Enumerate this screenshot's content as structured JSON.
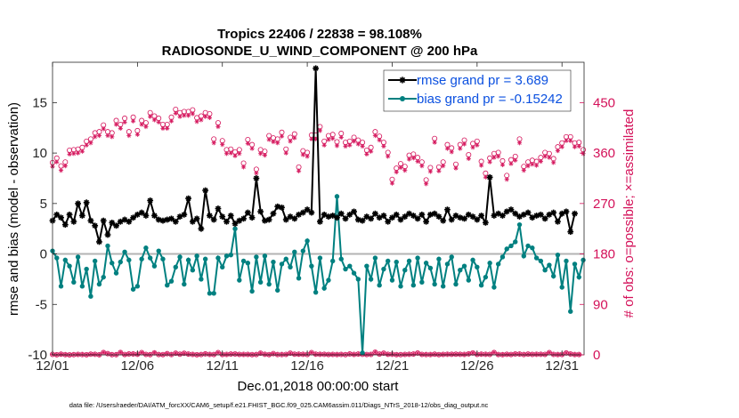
{
  "title_line1": "Tropics 22406 / 22838 = 98.108%",
  "title_line2": "RADIOSONDE_U_WIND_COMPONENT @ 200 hPa",
  "xlabel": "Dec.01,2018 00:00:00 start",
  "ylabel_left": "rmse and bias (model - observation)",
  "ylabel_right": "# of obs: o=possible; ×=assimilated",
  "footer": "data file: /Users/raeder/DAI/ATM_forcXX/CAM6_setup/f.e21.FHIST_BGC.f09_025.CAM6assim.011/Diags_NTrS_2018-12/obs_diag_output.nc",
  "legend": [
    {
      "label": "rmse grand pr = 3.689",
      "color": "#000000"
    },
    {
      "label": "bias grand pr = -0.15242",
      "color": "#008080"
    }
  ],
  "colors": {
    "rmse": "#000000",
    "bias": "#008080",
    "counts": "#d41159",
    "zero_line": "#b3b3b3"
  },
  "chart_data": {
    "type": "line",
    "title": "Tropics 22406 / 22838 = 98.108%  RADIOSONDE_U_WIND_COMPONENT @ 200 hPa",
    "x_unit": "days since Dec.01,2018 00:00:00",
    "xlim": [
      0,
      31.3
    ],
    "xticks": [
      0,
      5,
      10,
      15,
      20,
      25,
      30
    ],
    "xtick_labels": [
      "12/01",
      "12/06",
      "12/11",
      "12/16",
      "12/21",
      "12/26",
      "12/31"
    ],
    "ylim_left": [
      -10,
      19
    ],
    "yticks_left": [
      -10,
      -5,
      0,
      5,
      10,
      15
    ],
    "ytick_labels_left": [
      "-10",
      "-5",
      "0",
      "5",
      "10",
      "15"
    ],
    "ylim_right": [
      0,
      522
    ],
    "yticks_right": [
      0,
      90,
      180,
      270,
      360,
      450
    ],
    "ytick_labels_right": [
      "0",
      "90",
      "180",
      "270",
      "360",
      "450"
    ],
    "series": [
      {
        "name": "rmse",
        "legend": "rmse grand pr = 3.689",
        "axis": "left",
        "values": [
          3.3,
          3.9,
          3.6,
          2.9,
          3.9,
          3.2,
          5.0,
          3.8,
          5.1,
          3.3,
          2.8,
          1.2,
          3.3,
          1.9,
          3.1,
          2.8,
          3.2,
          3.4,
          3.2,
          3.6,
          3.9,
          4.1,
          3.8,
          5.3,
          3.8,
          3.4,
          3.3,
          3.4,
          3.5,
          3.2,
          3.7,
          3.9,
          5.5,
          3.2,
          3.5,
          2.5,
          6.3,
          3.8,
          3.4,
          4.5,
          3.7,
          3.2,
          3.8,
          3.0,
          3.3,
          3.5,
          4.1,
          3.6,
          7.5,
          4.2,
          3.3,
          3.4,
          4.0,
          4.7,
          4.6,
          3.4,
          3.7,
          3.5,
          3.9,
          4.1,
          4.4,
          4.1,
          18.4,
          3.2,
          3.9,
          3.7,
          3.8,
          3.6,
          4.0,
          3.5,
          3.9,
          4.2,
          3.4,
          3.3,
          3.7,
          3.5,
          4.0,
          3.6,
          3.8,
          3.2,
          3.6,
          3.9,
          3.4,
          3.7,
          4.0,
          3.8,
          3.5,
          3.9,
          3.2,
          3.9,
          4.0,
          3.7,
          3.3,
          4.4,
          3.4,
          3.8,
          3.6,
          3.5,
          3.9,
          3.7,
          3.4,
          3.8,
          3.1,
          7.6,
          3.8,
          4.0,
          3.8,
          4.2,
          4.4,
          4.0,
          3.7,
          3.9,
          4.1,
          3.6,
          3.8,
          3.9,
          3.5,
          3.9,
          4.1,
          3.2,
          4.0,
          4.2,
          2.2,
          4.0
        ]
      },
      {
        "name": "bias",
        "legend": "bias grand pr = -0.15242",
        "axis": "left",
        "values": [
          0.3,
          -0.4,
          -3.2,
          -0.6,
          -1.2,
          -2.8,
          -0.3,
          -3.2,
          -1.5,
          -4.2,
          -0.7,
          -3.0,
          -2.3,
          0.8,
          -0.9,
          -1.9,
          -0.8,
          0.2,
          -0.6,
          -3.5,
          -3.2,
          -0.5,
          0.6,
          -0.4,
          -1.2,
          0.3,
          -0.5,
          -3.1,
          -2.7,
          -1.3,
          -0.3,
          -3.0,
          -0.6,
          -1.6,
          -0.2,
          -2.5,
          -0.5,
          -3.9,
          -3.9,
          -0.4,
          -1.3,
          -0.2,
          -0.1,
          2.5,
          -2.6,
          -0.7,
          -0.9,
          -3.7,
          -0.3,
          -2.8,
          -0.2,
          -3.0,
          -0.8,
          -3.6,
          -1.0,
          -0.5,
          -1.3,
          0.2,
          -2.4,
          0.3,
          1.3,
          -1.2,
          -3.8,
          -0.4,
          -3.4,
          -2.6,
          -0.7,
          5.7,
          -0.5,
          -1.5,
          -1.2,
          -1.9,
          -2.5,
          -9.8,
          -1.2,
          -2.5,
          -0.4,
          -3.1,
          -1.5,
          -0.7,
          -2.6,
          -0.8,
          -3.2,
          -1.6,
          -0.7,
          -3.1,
          -0.4,
          -2.8,
          -0.9,
          -1.4,
          -3.0,
          -0.5,
          -3.2,
          -1.0,
          -0.3,
          -3.0,
          -1.6,
          -1.2,
          -2.6,
          -0.6,
          -1.3,
          -3.1,
          -2.3,
          -0.9,
          -3.3,
          -1.0,
          -0.3,
          0.5,
          0.8,
          1.2,
          2.9,
          -0.2,
          0.8,
          0.6,
          -0.4,
          -0.7,
          -1.6,
          -1.1,
          -2.2,
          -0.1,
          -3.3,
          -0.7,
          -5.7,
          -1.0,
          -2.3,
          -0.6
        ]
      },
      {
        "name": "possible",
        "marker": "circle",
        "axis": "right",
        "values": [
          343,
          351,
          337,
          344,
          365,
          366,
          367,
          370,
          381,
          385,
          396,
          398,
          410,
          398,
          396,
          418,
          411,
          422,
          398,
          424,
          400,
          418,
          414,
          432,
          426,
          422,
          411,
          411,
          424,
          438,
          432,
          434,
          434,
          437,
          423,
          426,
          432,
          430,
          385,
          414,
          382,
          366,
          367,
          362,
          366,
          342,
          384,
          375,
          331,
          366,
          363,
          391,
          387,
          385,
          397,
          367,
          388,
          394,
          335,
          364,
          361,
          392,
          392,
          407,
          381,
          391,
          393,
          380,
          395,
          379,
          381,
          388,
          383,
          379,
          365,
          370,
          398,
          390,
          379,
          361,
          313,
          333,
          341,
          336,
          356,
          358,
          352,
          344,
          312,
          334,
          386,
          335,
          344,
          375,
          369,
          340,
          375,
          383,
          357,
          377,
          381,
          345,
          324,
          351,
          359,
          361,
          346,
          320,
          348,
          354,
          385,
          336,
          344,
          347,
          345,
          352,
          361,
          359,
          350,
          371,
          378,
          389,
          389,
          378,
          379,
          366
        ]
      },
      {
        "name": "assimilated",
        "marker": "asterisk",
        "axis": "right",
        "values": [
          336,
          344,
          329,
          337,
          358,
          359,
          360,
          363,
          374,
          378,
          389,
          391,
          403,
          391,
          389,
          411,
          404,
          415,
          391,
          417,
          393,
          411,
          407,
          425,
          419,
          415,
          404,
          404,
          417,
          431,
          425,
          427,
          427,
          430,
          416,
          419,
          425,
          423,
          378,
          407,
          375,
          359,
          360,
          355,
          359,
          335,
          377,
          368,
          324,
          359,
          356,
          384,
          380,
          378,
          390,
          360,
          381,
          387,
          328,
          357,
          354,
          385,
          385,
          400,
          374,
          384,
          386,
          373,
          388,
          372,
          374,
          381,
          376,
          372,
          358,
          363,
          391,
          383,
          372,
          354,
          306,
          326,
          334,
          329,
          349,
          351,
          345,
          337,
          305,
          327,
          379,
          328,
          337,
          368,
          362,
          333,
          368,
          376,
          350,
          370,
          374,
          338,
          317,
          344,
          352,
          354,
          339,
          313,
          341,
          347,
          378,
          329,
          337,
          340,
          338,
          345,
          354,
          352,
          343,
          364,
          371,
          382,
          382,
          371,
          372,
          359
        ]
      }
    ],
    "counts_low_possible": [
      0.7,
      0.2,
      1.2,
      0.4,
      0.0,
      0.3,
      0.8,
      0.5,
      0.2,
      1.1,
      0.9,
      0.2,
      4.1,
      2.1,
      0.3,
      0.3,
      4.1,
      0.6,
      1.5,
      1.5,
      1.0,
      4.0,
      0.7,
      0.3,
      3.6,
      0.5,
      0.4,
      2.1,
      0.5,
      3.0,
      1.1,
      2.7,
      1.4,
      0.7,
      0.2,
      0.5,
      1.7,
      0.7,
      0.5,
      4.0,
      0.6,
      0.8,
      1.3,
      1.6,
      0.8,
      0.8,
      0.8,
      0.4,
      0.5,
      3.0,
      0.9,
      0.4,
      2.2,
      0.5,
      0.5,
      0.8,
      3.0,
      1.1,
      1.2,
      0.9,
      0.5,
      4.0,
      1.1,
      0.9,
      0.9,
      0.6,
      0.8,
      0.6,
      0.7,
      0.3,
      1.5,
      0.8,
      1.3,
      0.9,
      0.6,
      0.7,
      4.8,
      1.3,
      2.9,
      1.0,
      0.9,
      0.4,
      0.3,
      0.8,
      0.9,
      1.3,
      3.1,
      0.8,
      0.5,
      0.6,
      1.2,
      0.4,
      0.8,
      0.9,
      1.0,
      1.2,
      0.9,
      0.8,
      1.8,
      3.4,
      0.8,
      1.1,
      0.9,
      0.7,
      4.1,
      0.6,
      0.4,
      1.0,
      0.6,
      1.6,
      1.3,
      0.5,
      1.4,
      0.7,
      0.9,
      0.9,
      0.8,
      4.0,
      0.7,
      0.6,
      0.6,
      3.3,
      1.6,
      0.6,
      0.6
    ]
  }
}
